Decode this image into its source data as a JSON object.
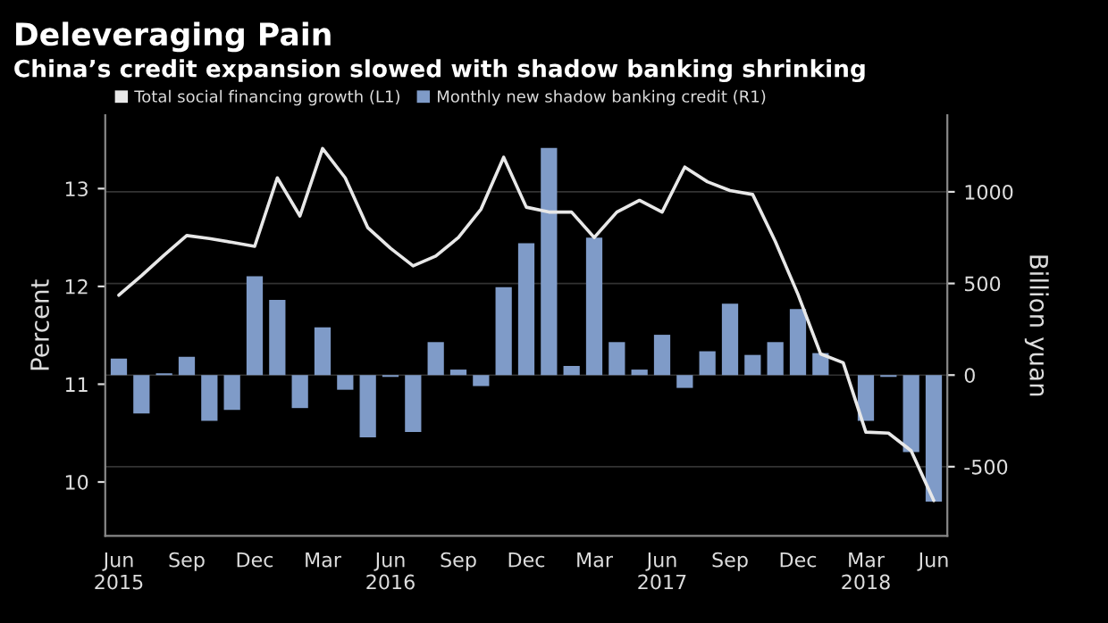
{
  "chart_data": {
    "type": "bar",
    "title": "Deleveraging Pain",
    "subtitle": "China’s credit expansion slowed with shadow banking shrinking",
    "ylabel": "Percent",
    "y2label": "Billion yuan",
    "categories": [
      "Jun\n2015",
      null,
      null,
      "Sep",
      null,
      null,
      "Dec",
      null,
      null,
      "Mar",
      null,
      null,
      "Jun\n2016",
      null,
      null,
      "Sep",
      null,
      null,
      "Dec",
      null,
      null,
      "Mar",
      null,
      null,
      "Jun\n2017",
      null,
      null,
      "Sep",
      null,
      null,
      "Dec",
      null,
      null,
      "Mar\n2018",
      null,
      null,
      "Jun"
    ],
    "series": [
      {
        "name": "Total social financing growth (L1)",
        "type": "line",
        "axis": "y",
        "color": "#e8e8e8",
        "values": [
          11.91,
          12.11,
          12.32,
          12.52,
          12.49,
          12.45,
          12.41,
          13.11,
          12.72,
          13.41,
          13.11,
          12.6,
          12.39,
          12.21,
          12.31,
          12.5,
          12.79,
          13.32,
          12.81,
          12.76,
          12.76,
          12.5,
          12.76,
          12.88,
          12.76,
          13.22,
          13.07,
          12.98,
          12.94,
          12.46,
          11.92,
          11.31,
          11.22,
          10.51,
          10.5,
          10.32,
          9.81
        ]
      },
      {
        "name": "Monthly new shadow banking credit (R1)",
        "axis": "y2",
        "color": "#7f9bc8",
        "values": [
          90,
          -210,
          10,
          100,
          -250,
          -190,
          540,
          410,
          -180,
          260,
          -80,
          -340,
          -10,
          -310,
          180,
          30,
          -60,
          480,
          720,
          1240,
          50,
          750,
          180,
          30,
          220,
          -70,
          130,
          390,
          110,
          180,
          360,
          120,
          0,
          -250,
          -10,
          -420,
          -690
        ]
      }
    ],
    "ylim": [
      9.45,
      13.75
    ],
    "yticks": [
      10,
      11,
      12,
      13
    ],
    "y2lim": [
      -877,
      1418
    ],
    "y2ticks": [
      -500,
      0,
      500,
      1000
    ],
    "grid": true,
    "legend": "top left"
  }
}
